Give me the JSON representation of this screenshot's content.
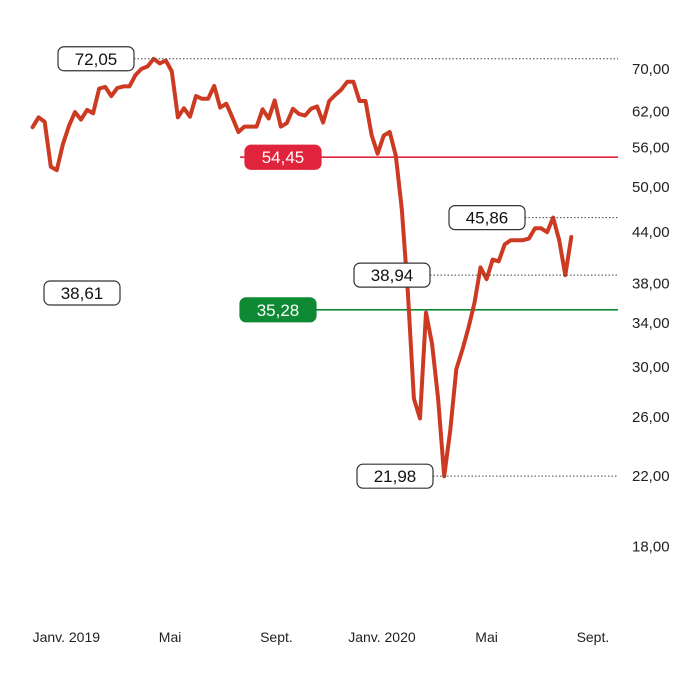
{
  "chart_data": {
    "type": "line",
    "title": "",
    "xlabel": "",
    "ylabel": "",
    "y_scale": "log",
    "ylim": [
      16.5,
      76
    ],
    "y_ticks": [
      {
        "value": 70,
        "label": "70,00"
      },
      {
        "value": 62,
        "label": "62,00"
      },
      {
        "value": 56,
        "label": "56,00"
      },
      {
        "value": 50,
        "label": "50,00"
      },
      {
        "value": 44,
        "label": "44,00"
      },
      {
        "value": 38,
        "label": "38,00"
      },
      {
        "value": 34,
        "label": "34,00"
      },
      {
        "value": 30,
        "label": "30,00"
      },
      {
        "value": 26,
        "label": "26,00"
      },
      {
        "value": 22,
        "label": "22,00"
      },
      {
        "value": 18,
        "label": "18,00"
      }
    ],
    "xlim": [
      "2018-11-20",
      "2020-09-30"
    ],
    "x_ticks": [
      {
        "date": "2019-01-01",
        "label": "Janv. 2019"
      },
      {
        "date": "2019-05-01",
        "label": "Mai"
      },
      {
        "date": "2019-09-01",
        "label": "Sept."
      },
      {
        "date": "2020-01-01",
        "label": "Janv. 2020"
      },
      {
        "date": "2020-05-01",
        "label": "Mai"
      },
      {
        "date": "2020-09-01",
        "label": "Sept."
      }
    ],
    "grid": false,
    "series": [
      {
        "color": "#cc3a22",
        "points": [
          [
            "2018-11-23",
            59.3
          ],
          [
            "2018-11-30",
            61.0
          ],
          [
            "2018-12-07",
            60.2
          ],
          [
            "2018-12-14",
            53.0
          ],
          [
            "2018-12-21",
            52.5
          ],
          [
            "2018-12-28",
            56.5
          ],
          [
            "2019-01-04",
            59.5
          ],
          [
            "2019-01-11",
            61.9
          ],
          [
            "2019-01-18",
            60.6
          ],
          [
            "2019-01-25",
            62.3
          ],
          [
            "2019-02-01",
            61.7
          ],
          [
            "2019-02-08",
            66.2
          ],
          [
            "2019-02-15",
            66.5
          ],
          [
            "2019-02-22",
            64.8
          ],
          [
            "2019-03-01",
            66.3
          ],
          [
            "2019-03-08",
            66.6
          ],
          [
            "2019-03-15",
            66.6
          ],
          [
            "2019-03-22",
            68.8
          ],
          [
            "2019-03-29",
            70.0
          ],
          [
            "2019-04-05",
            70.5
          ],
          [
            "2019-04-12",
            72.05
          ],
          [
            "2019-04-19",
            71.1
          ],
          [
            "2019-04-26",
            71.7
          ],
          [
            "2019-05-03",
            69.5
          ],
          [
            "2019-05-10",
            61.0
          ],
          [
            "2019-05-17",
            62.6
          ],
          [
            "2019-05-24",
            61.1
          ],
          [
            "2019-05-31",
            64.8
          ],
          [
            "2019-06-07",
            64.3
          ],
          [
            "2019-06-14",
            64.3
          ],
          [
            "2019-06-21",
            66.7
          ],
          [
            "2019-06-28",
            62.7
          ],
          [
            "2019-07-05",
            63.4
          ],
          [
            "2019-07-12",
            61.0
          ],
          [
            "2019-07-19",
            58.5
          ],
          [
            "2019-07-26",
            59.4
          ],
          [
            "2019-08-02",
            59.4
          ],
          [
            "2019-08-09",
            59.4
          ],
          [
            "2019-08-16",
            62.4
          ],
          [
            "2019-08-23",
            60.8
          ],
          [
            "2019-08-30",
            64.0
          ],
          [
            "2019-09-06",
            59.4
          ],
          [
            "2019-09-13",
            60.0
          ],
          [
            "2019-09-20",
            62.5
          ],
          [
            "2019-09-27",
            61.6
          ],
          [
            "2019-10-04",
            61.3
          ],
          [
            "2019-10-11",
            62.5
          ],
          [
            "2019-10-18",
            62.9
          ],
          [
            "2019-10-25",
            60.1
          ],
          [
            "2019-11-01",
            63.9
          ],
          [
            "2019-11-08",
            65.0
          ],
          [
            "2019-11-15",
            66.0
          ],
          [
            "2019-11-22",
            67.5
          ],
          [
            "2019-11-29",
            67.5
          ],
          [
            "2019-12-06",
            63.9
          ],
          [
            "2019-12-13",
            63.9
          ],
          [
            "2019-12-20",
            58.0
          ],
          [
            "2019-12-27",
            55.0
          ],
          [
            "2020-01-03",
            57.9
          ],
          [
            "2020-01-10",
            58.5
          ],
          [
            "2020-01-17",
            54.7
          ],
          [
            "2020-01-24",
            47.0
          ],
          [
            "2020-01-31",
            37.0
          ],
          [
            "2020-02-07",
            27.4
          ],
          [
            "2020-02-14",
            25.9
          ],
          [
            "2020-02-21",
            35.0
          ],
          [
            "2020-02-28",
            32.0
          ],
          [
            "2020-03-06",
            27.4
          ],
          [
            "2020-03-13",
            21.98
          ],
          [
            "2020-03-20",
            25.0
          ],
          [
            "2020-03-27",
            29.8
          ],
          [
            "2020-04-03",
            31.5
          ],
          [
            "2020-04-10",
            33.5
          ],
          [
            "2020-04-17",
            36.0
          ],
          [
            "2020-04-24",
            39.8
          ],
          [
            "2020-05-01",
            38.5
          ],
          [
            "2020-05-08",
            40.7
          ],
          [
            "2020-05-15",
            40.5
          ],
          [
            "2020-05-22",
            42.5
          ],
          [
            "2020-05-29",
            43.0
          ],
          [
            "2020-06-05",
            43.0
          ],
          [
            "2020-06-12",
            43.0
          ],
          [
            "2020-06-19",
            43.2
          ],
          [
            "2020-06-26",
            44.5
          ],
          [
            "2020-07-03",
            44.5
          ],
          [
            "2020-07-10",
            44.0
          ],
          [
            "2020-07-17",
            45.86
          ],
          [
            "2020-07-24",
            43.0
          ],
          [
            "2020-07-31",
            38.94
          ],
          [
            "2020-08-07",
            43.4
          ]
        ]
      }
    ],
    "reference_lines": [
      {
        "value": 54.45,
        "label": "54,45",
        "color": "#e0243c",
        "style": "solid"
      },
      {
        "value": 35.28,
        "label": "35,28",
        "color": "#0f8a34",
        "style": "solid"
      }
    ],
    "annotations": [
      {
        "value": 72.05,
        "label": "72,05",
        "style": "dotted"
      },
      {
        "value": 45.86,
        "label": "45,86",
        "style": "dotted"
      },
      {
        "value": 38.94,
        "label": "38,94",
        "style": "dotted"
      },
      {
        "value": 21.98,
        "label": "21,98",
        "style": "dotted"
      },
      {
        "value": 38.61,
        "label": "38,61",
        "style": "box-only"
      }
    ]
  }
}
